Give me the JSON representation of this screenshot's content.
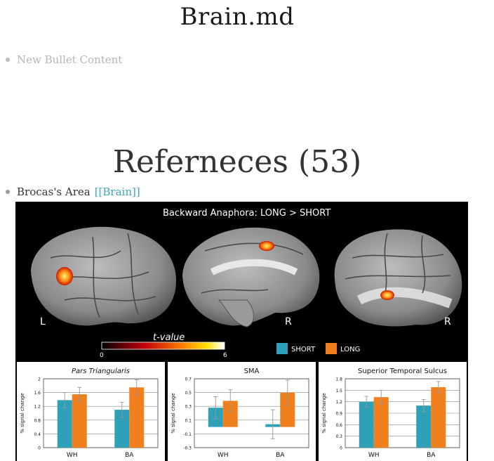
{
  "document": {
    "title": "Brain.md",
    "bullet_placeholder": "New Bullet Content"
  },
  "references": {
    "heading": "Referneces (53)",
    "item_label": "Brocas's Area",
    "item_link": "[[Brain]]"
  },
  "figure": {
    "title": "Backward Anaphora: LONG > SHORT",
    "hemisphere_labels": [
      "L",
      "R",
      "R"
    ],
    "colorbar_label": "t-value",
    "colorbar_min": "0",
    "colorbar_max": "6",
    "colors": {
      "short": "#2ea0b8",
      "long": "#f07f1e",
      "background": "#000000"
    }
  },
  "chart_data": [
    {
      "type": "bar",
      "title": "Pars Triangularis",
      "ylabel": "% signal change",
      "categories": [
        "WH",
        "BA"
      ],
      "ylim": [
        0,
        2
      ],
      "yticks": [
        "0",
        "0.4",
        "0.8",
        "1.2",
        "1.6",
        "2"
      ],
      "series": [
        {
          "name": "SHORT",
          "values": [
            1.38,
            1.1
          ],
          "errors": [
            0.22,
            0.22
          ]
        },
        {
          "name": "LONG",
          "values": [
            1.55,
            1.75
          ],
          "errors": [
            0.2,
            0.22
          ]
        }
      ]
    },
    {
      "type": "bar",
      "title": "SMA",
      "ylabel": "% signal change",
      "categories": [
        "WH",
        "BA"
      ],
      "ylim": [
        -0.3,
        0.7
      ],
      "yticks": [
        "-0.3",
        "-0.1",
        "0.1",
        "0.3",
        "0.5",
        "0.7"
      ],
      "series": [
        {
          "name": "SHORT",
          "values": [
            0.28,
            0.04
          ],
          "errors": [
            0.16,
            0.21
          ]
        },
        {
          "name": "LONG",
          "values": [
            0.38,
            0.5
          ],
          "errors": [
            0.16,
            0.18
          ]
        }
      ]
    },
    {
      "type": "bar",
      "title": "Superior Temporal Sulcus",
      "ylabel": "% signal change",
      "categories": [
        "WH",
        "BA"
      ],
      "ylim": [
        0,
        1.8
      ],
      "yticks": [
        "0",
        "0.3",
        "0.6",
        "0.9",
        "1.2",
        "1.5",
        "1.8"
      ],
      "series": [
        {
          "name": "SHORT",
          "values": [
            1.2,
            1.1
          ],
          "errors": [
            0.14,
            0.16
          ]
        },
        {
          "name": "LONG",
          "values": [
            1.32,
            1.58
          ],
          "errors": [
            0.18,
            0.15
          ]
        }
      ]
    }
  ]
}
